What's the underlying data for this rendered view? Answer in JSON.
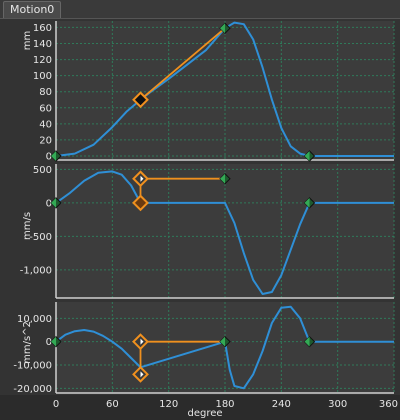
{
  "tab": {
    "label": "Motion0"
  },
  "colors": {
    "background": "#2b2b2b",
    "plot_bg": "#3c3c3c",
    "grid": "#2f7a5a",
    "curve": "#2f8fd6",
    "segment": "#f0901e",
    "axis": "#d0d0d0"
  },
  "chart_data": [
    {
      "type": "line",
      "ylabel": "mm",
      "xlim": [
        0,
        360
      ],
      "ylim": [
        -5,
        168
      ],
      "yticks": [
        0,
        20,
        40,
        60,
        80,
        100,
        120,
        140,
        160
      ],
      "ytick_labels": [
        "0",
        "20",
        "40",
        "60",
        "80",
        "100",
        "120",
        "140",
        "160"
      ],
      "grid": true,
      "series": [
        {
          "role": "curve",
          "x": [
            0,
            20,
            40,
            60,
            75,
            90,
            100,
            120,
            140,
            160,
            180,
            190,
            200,
            210,
            220,
            230,
            240,
            250,
            260,
            270,
            300,
            360
          ],
          "y": [
            0,
            3,
            14,
            36,
            55,
            70,
            79,
            96,
            114,
            132,
            159,
            166,
            164,
            145,
            110,
            70,
            35,
            12,
            3,
            0,
            0,
            0
          ]
        },
        {
          "role": "highlight",
          "x": [
            90,
            180
          ],
          "y": [
            70,
            159
          ]
        }
      ],
      "markers": [
        {
          "x": 0,
          "y": 0,
          "style": "green"
        },
        {
          "x": 90,
          "y": 70,
          "style": "black"
        },
        {
          "x": 180,
          "y": 159,
          "style": "green"
        },
        {
          "x": 270,
          "y": 0,
          "style": "green"
        }
      ]
    },
    {
      "type": "line",
      "ylabel": "mm/s",
      "xlim": [
        0,
        360
      ],
      "ylim": [
        -1420,
        580
      ],
      "yticks": [
        500,
        0,
        -500,
        -1000
      ],
      "ytick_labels": [
        "500",
        "0",
        "-500",
        "-1,000"
      ],
      "grid": true,
      "series": [
        {
          "role": "curve",
          "x": [
            0,
            15,
            30,
            45,
            60,
            70,
            80,
            90,
            180,
            190,
            200,
            210,
            220,
            230,
            240,
            250,
            260,
            270,
            360
          ],
          "y": [
            0,
            150,
            330,
            450,
            470,
            420,
            260,
            0,
            0,
            -300,
            -750,
            -1150,
            -1360,
            -1330,
            -1080,
            -700,
            -320,
            0,
            0
          ]
        },
        {
          "role": "highlight",
          "x": [
            90,
            90,
            180,
            180
          ],
          "y": [
            0,
            360,
            360,
            360
          ]
        }
      ],
      "markers": [
        {
          "x": 0,
          "y": 0,
          "style": "green"
        },
        {
          "x": 90,
          "y": 360,
          "style": "orange"
        },
        {
          "x": 90,
          "y": 0,
          "style": "orange-dark"
        },
        {
          "x": 180,
          "y": 360,
          "style": "green"
        },
        {
          "x": 270,
          "y": 0,
          "style": "green"
        }
      ]
    },
    {
      "type": "line",
      "ylabel": "mm/s^2",
      "xlabel": "degree",
      "xlim": [
        0,
        360
      ],
      "ylim": [
        -22000,
        17000
      ],
      "yticks": [
        10000,
        0,
        -10000,
        -20000
      ],
      "ytick_labels": [
        "10,000",
        "0",
        "-10,000",
        "-20,000"
      ],
      "xticks": [
        0,
        60,
        120,
        180,
        240,
        300,
        360
      ],
      "xtick_labels": [
        "0",
        "60",
        "120",
        "180",
        "240",
        "300",
        "360"
      ],
      "grid": true,
      "series": [
        {
          "role": "curve",
          "x": [
            0,
            10,
            20,
            30,
            40,
            50,
            60,
            70,
            80,
            90,
            180,
            185,
            190,
            200,
            210,
            220,
            230,
            240,
            250,
            260,
            270,
            360
          ],
          "y": [
            0,
            3000,
            4500,
            5000,
            4300,
            2500,
            0,
            -3000,
            -7000,
            -11000,
            0,
            -12000,
            -19000,
            -20000,
            -14000,
            -4000,
            8000,
            14500,
            15000,
            10000,
            0,
            0
          ]
        },
        {
          "role": "highlight",
          "x": [
            90,
            90,
            180
          ],
          "y": [
            -14000,
            0,
            0
          ]
        }
      ],
      "markers": [
        {
          "x": 0,
          "y": 0,
          "style": "green"
        },
        {
          "x": 90,
          "y": 0,
          "style": "orange"
        },
        {
          "x": 90,
          "y": -14000,
          "style": "orange"
        },
        {
          "x": 180,
          "y": 0,
          "style": "green"
        },
        {
          "x": 270,
          "y": 0,
          "style": "green"
        }
      ]
    }
  ]
}
